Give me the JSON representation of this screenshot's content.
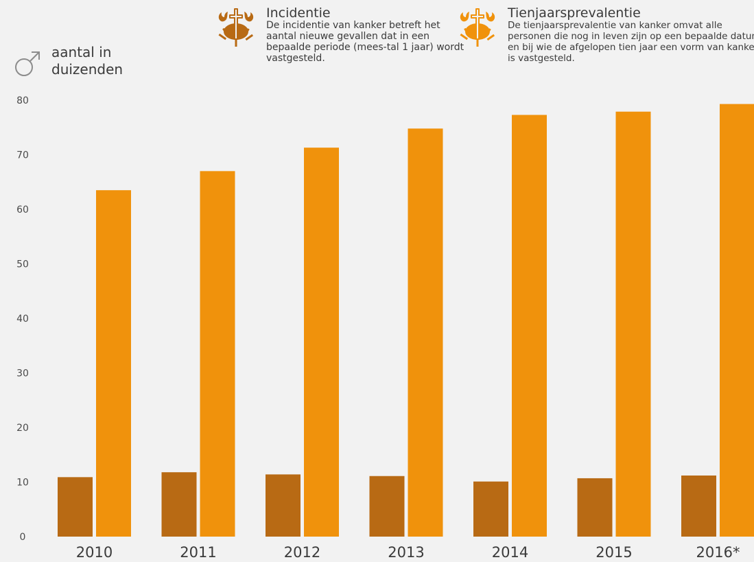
{
  "header": {
    "ylabel_line1": "aantal in",
    "ylabel_line2": "duizenden",
    "gender_icon": "male-symbol-icon"
  },
  "legend": [
    {
      "title": "Incidentie",
      "description": "De incidentie van kanker betreft het aantal nieuwe gevallen dat in een bepaalde periode (mees-tal 1 jaar) wordt vastgesteld.",
      "icon": "crab-cross-icon",
      "color": "#b86a14"
    },
    {
      "title": "Tienjaarsprevalentie",
      "description": "De tienjaarsprevalentie van kanker omvat alle personen die nog in leven zijn op een bepaalde datum en bij wie de afgelopen tien jaar een vorm van kanker is vastgesteld.",
      "icon": "crab-cross-icon",
      "color": "#f0920c"
    }
  ],
  "chart_data": {
    "type": "bar",
    "categories": [
      "2010",
      "2011",
      "2012",
      "2013",
      "2014",
      "2015",
      "2016*"
    ],
    "series": [
      {
        "name": "Incidentie",
        "color": "#b86a14",
        "values": [
          10.9,
          11.8,
          11.4,
          11.1,
          10.1,
          10.7,
          11.2
        ]
      },
      {
        "name": "Tienjaarsprevalentie",
        "color": "#f0920c",
        "values": [
          63.5,
          67.0,
          71.3,
          74.8,
          77.3,
          77.9,
          79.3
        ]
      }
    ],
    "ylim": [
      0,
      80
    ],
    "yticks": [
      0,
      10,
      20,
      30,
      40,
      50,
      60,
      70,
      80
    ],
    "ylabel": "aantal in duizenden",
    "grid": false,
    "legend_position": "top"
  }
}
